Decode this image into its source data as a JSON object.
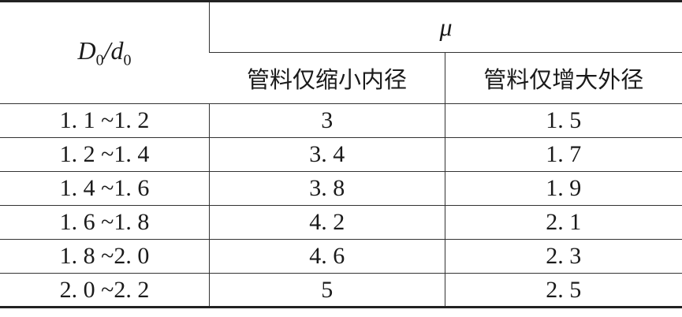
{
  "header": {
    "ratio_main_1": "D",
    "ratio_sub_1": "0",
    "ratio_slash": "/",
    "ratio_main_2": "d",
    "ratio_sub_2": "0",
    "mu": "μ",
    "col_shrink": "管料仅缩小内径",
    "col_expand": "管料仅增大外径"
  },
  "rows": [
    {
      "range": "1. 1 ~1. 2",
      "shrink": "3",
      "expand": "1. 5"
    },
    {
      "range": "1. 2 ~1. 4",
      "shrink": "3. 4",
      "expand": "1. 7"
    },
    {
      "range": "1. 4 ~1. 6",
      "shrink": "3. 8",
      "expand": "1. 9"
    },
    {
      "range": "1. 6 ~1. 8",
      "shrink": "4. 2",
      "expand": "2. 1"
    },
    {
      "range": "1. 8 ~2. 0",
      "shrink": "4. 6",
      "expand": "2. 3"
    },
    {
      "range": "2. 0 ~2. 2",
      "shrink": "5",
      "expand": "2. 5"
    }
  ]
}
